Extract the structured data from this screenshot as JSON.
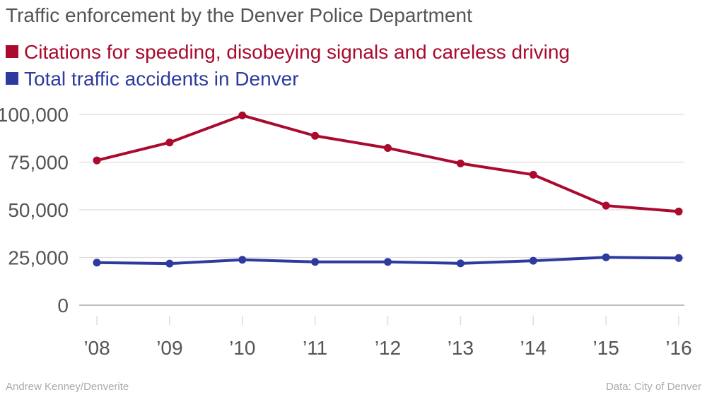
{
  "chart_data": {
    "type": "line",
    "title": "Traffic enforcement by the Denver Police Department",
    "categories": [
      "’08",
      "’09",
      "’10",
      "’11",
      "’12",
      "’13",
      "’14",
      "’15",
      "’16"
    ],
    "series": [
      {
        "name": "Citations for speeding, disobeying signals and careless driving",
        "color": "#aa0a2d",
        "values": [
          75900,
          85300,
          99500,
          88800,
          82400,
          74300,
          68400,
          52200,
          49100
        ]
      },
      {
        "name": "Total traffic accidents in Denver",
        "color": "#2e3a9e",
        "values": [
          22300,
          21800,
          23800,
          22700,
          22700,
          21900,
          23300,
          25100,
          24700
        ]
      }
    ],
    "yticks": [
      "0",
      "25,000",
      "50,000",
      "75,000",
      "100,000"
    ],
    "ytick_values": [
      0,
      25000,
      50000,
      75000,
      100000
    ],
    "ylim": [
      0,
      100000
    ],
    "grid": true,
    "legend_placement": "top-left"
  },
  "footer": {
    "source_credit": "Andrew Kenney/Denverite",
    "data_credit": "Data: City of Denver"
  },
  "colors": {
    "gridline": "#dddddd",
    "axis": "#aaaaaa",
    "text": "#555555"
  }
}
